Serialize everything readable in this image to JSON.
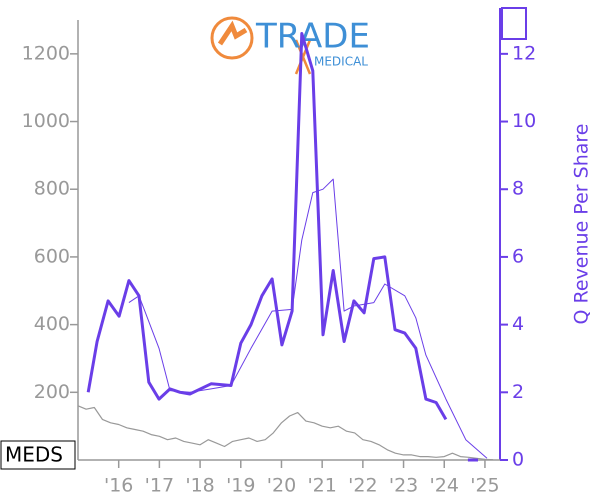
{
  "logo": {
    "brand": "TRADE",
    "sub": "MEDICAL"
  },
  "chart_data": {
    "type": "line",
    "ticker": "MEDS",
    "y2label": "Q Revenue Per Share",
    "xlim": [
      2015,
      2025.37
    ],
    "xticks": [
      {
        "value": 2016,
        "label": "'16"
      },
      {
        "value": 2017,
        "label": "'17"
      },
      {
        "value": 2018,
        "label": "'18"
      },
      {
        "value": 2019,
        "label": "'19"
      },
      {
        "value": 2020,
        "label": "'20"
      },
      {
        "value": 2021,
        "label": "'21"
      },
      {
        "value": 2022,
        "label": "'22"
      },
      {
        "value": 2023,
        "label": "'23"
      },
      {
        "value": 2024,
        "label": "'24"
      },
      {
        "value": 2025,
        "label": "'25"
      }
    ],
    "ylim": [
      0,
      1300
    ],
    "yticks": [
      200,
      400,
      600,
      800,
      1000,
      1200
    ],
    "y2lim": [
      0,
      13
    ],
    "y2ticks": [
      0,
      2,
      4,
      6,
      8,
      10,
      12
    ],
    "series": [
      {
        "color": "#999999",
        "axis": "y",
        "width": 1.2,
        "x": [
          2015.0,
          2015.2,
          2015.4,
          2015.6,
          2015.8,
          2016.0,
          2016.2,
          2016.4,
          2016.6,
          2016.8,
          2017.0,
          2017.2,
          2017.4,
          2017.6,
          2017.8,
          2018.0,
          2018.2,
          2018.4,
          2018.6,
          2018.8,
          2019.0,
          2019.2,
          2019.4,
          2019.6,
          2019.8,
          2020.0,
          2020.2,
          2020.4,
          2020.6,
          2020.8,
          2021.0,
          2021.2,
          2021.4,
          2021.6,
          2021.8,
          2022.0,
          2022.2,
          2022.4,
          2022.6,
          2022.8,
          2023.0,
          2023.2,
          2023.4,
          2023.6,
          2023.8,
          2024.0,
          2024.2,
          2024.4,
          2024.6,
          2024.8,
          2025.0,
          2025.2
        ],
        "values": [
          160,
          150,
          155,
          120,
          110,
          105,
          95,
          90,
          85,
          75,
          70,
          60,
          65,
          55,
          50,
          45,
          60,
          50,
          40,
          55,
          60,
          65,
          55,
          60,
          80,
          110,
          130,
          140,
          115,
          110,
          100,
          95,
          100,
          85,
          80,
          60,
          55,
          45,
          30,
          20,
          15,
          15,
          10,
          10,
          8,
          10,
          20,
          10,
          8,
          5,
          2,
          1
        ]
      },
      {
        "color": "#6a3ee8",
        "axis": "y2",
        "width": 1,
        "x": [
          2016.25,
          2016.5,
          2016.99,
          2017.26,
          2017.75,
          2018.27,
          2018.76,
          2019.25,
          2019.77,
          2020.26,
          2020.5,
          2020.77,
          2021.02,
          2021.27,
          2021.54,
          2021.78,
          2022.27,
          2022.54,
          2023.03,
          2023.3,
          2023.55,
          2024.04,
          2024.53,
          2025.05
        ],
        "values": [
          4.65,
          4.85,
          3.3,
          2.05,
          2.0,
          2.1,
          2.2,
          3.3,
          4.4,
          4.45,
          6.5,
          7.9,
          8.0,
          8.3,
          4.4,
          4.55,
          4.65,
          5.2,
          4.85,
          4.2,
          3.1,
          1.8,
          0.6,
          0.05
        ]
      },
      {
        "color": "#6a3ee8",
        "axis": "y2",
        "width": 3,
        "x": [
          2015.25,
          2015.47,
          2015.74,
          2016.01,
          2016.25,
          2016.5,
          2016.74,
          2016.99,
          2017.26,
          2017.51,
          2017.75,
          2018.27,
          2018.76,
          2019.0,
          2019.25,
          2019.52,
          2019.77,
          2020.01,
          2020.26,
          2020.5,
          2020.77,
          2021.02,
          2021.27,
          2021.54,
          2021.78,
          2022.03,
          2022.27,
          2022.54,
          2022.79,
          2023.03,
          2023.3,
          2023.55,
          2023.8,
          2024.04,
          2024.3,
          2024.58,
          2024.83
        ],
        "values": [
          2.0,
          3.5,
          4.7,
          4.25,
          5.3,
          4.85,
          2.3,
          1.8,
          2.1,
          2.0,
          1.95,
          2.25,
          2.2,
          3.45,
          4.0,
          4.85,
          5.35,
          3.4,
          4.4,
          12.6,
          11.5,
          3.7,
          5.6,
          3.5,
          4.7,
          4.35,
          5.95,
          6.0,
          3.85,
          3.75,
          3.3,
          1.8,
          1.7,
          1.2,
          null,
          0,
          0
        ]
      }
    ]
  }
}
